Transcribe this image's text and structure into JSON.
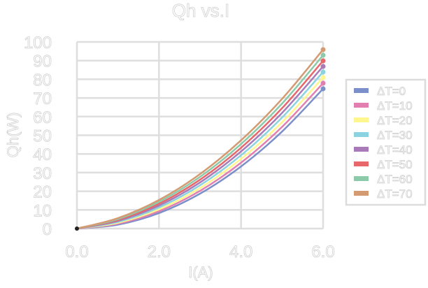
{
  "chart_data": {
    "type": "line",
    "title": "Qh vs.I",
    "xlabel": "I(A)",
    "ylabel": "Qh(W)",
    "xlim": [
      0,
      6
    ],
    "ylim": [
      0,
      100
    ],
    "xticks": [
      "0.0",
      "2.0",
      "4.0",
      "6.0"
    ],
    "xtick_values": [
      0,
      2,
      4,
      6
    ],
    "yticks": [
      "0",
      "10",
      "20",
      "30",
      "40",
      "50",
      "60",
      "70",
      "80",
      "90",
      "100"
    ],
    "grid": true,
    "legend_position": "right",
    "x": [
      0,
      1,
      2,
      3,
      4,
      5,
      6
    ],
    "series": [
      {
        "name": "ΔT=0",
        "color": "#7b8fcb",
        "values": [
          0,
          2.1,
          8.3,
          18.7,
          33.3,
          52.0,
          74.9
        ]
      },
      {
        "name": "ΔT=10",
        "color": "#e27fb0",
        "values": [
          0,
          2.6,
          9.3,
          20.2,
          35.3,
          54.5,
          77.9
        ]
      },
      {
        "name": "ΔT=20",
        "color": "#fff68f",
        "values": [
          0,
          3.1,
          10.3,
          21.7,
          37.3,
          57.0,
          80.9
        ]
      },
      {
        "name": "ΔT=30",
        "color": "#8bd3e0",
        "values": [
          0,
          3.6,
          11.3,
          23.2,
          39.3,
          59.5,
          83.9
        ]
      },
      {
        "name": "ΔT=40",
        "color": "#a87bb8",
        "values": [
          0,
          4.1,
          12.3,
          24.7,
          41.3,
          62.0,
          86.9
        ]
      },
      {
        "name": "ΔT=50",
        "color": "#e8676a",
        "values": [
          0,
          4.6,
          13.3,
          26.2,
          43.3,
          64.5,
          89.9
        ]
      },
      {
        "name": "ΔT=60",
        "color": "#8ccaa9",
        "values": [
          0,
          5.1,
          14.3,
          27.7,
          45.3,
          67.0,
          92.9
        ]
      },
      {
        "name": "ΔT=70",
        "color": "#d49a72",
        "values": [
          0,
          5.6,
          15.3,
          29.2,
          47.3,
          69.5,
          95.9
        ]
      }
    ]
  }
}
